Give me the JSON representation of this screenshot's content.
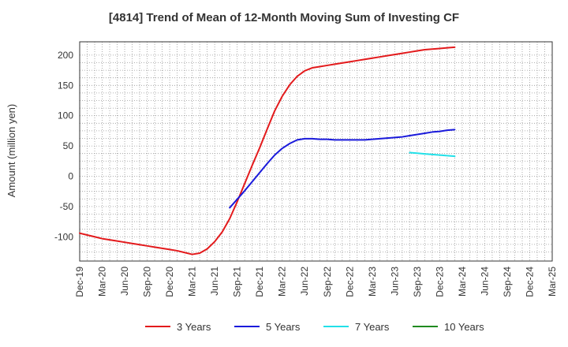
{
  "chart_data": {
    "type": "line",
    "title": "[4814]  Trend of Mean of 12-Month Moving Sum of Investing CF",
    "ylabel": "Amount (million yen)",
    "xlabel": "",
    "ylim": [
      -140,
      222
    ],
    "yticks": [
      -100,
      -50,
      0,
      50,
      100,
      150,
      200
    ],
    "x_tick_labels": [
      "Dec-19",
      "Mar-20",
      "Jun-20",
      "Sep-20",
      "Dec-20",
      "Mar-21",
      "Jun-21",
      "Sep-21",
      "Dec-21",
      "Mar-22",
      "Jun-22",
      "Sep-22",
      "Dec-22",
      "Mar-23",
      "Jun-23",
      "Sep-23",
      "Dec-23",
      "Mar-24",
      "Jun-24",
      "Sep-24",
      "Dec-24",
      "Mar-25"
    ],
    "grid": true,
    "legend_position": "bottom",
    "series": [
      {
        "name": "3 Years",
        "color": "#e31a1c",
        "points": [
          [
            "Dec-19",
            -94
          ],
          [
            "Jan-20",
            -97
          ],
          [
            "Feb-20",
            -100
          ],
          [
            "Mar-20",
            -103
          ],
          [
            "Apr-20",
            -105
          ],
          [
            "May-20",
            -107
          ],
          [
            "Jun-20",
            -109
          ],
          [
            "Jul-20",
            -111
          ],
          [
            "Aug-20",
            -113
          ],
          [
            "Sep-20",
            -115
          ],
          [
            "Oct-20",
            -117
          ],
          [
            "Nov-20",
            -119
          ],
          [
            "Dec-20",
            -121
          ],
          [
            "Jan-21",
            -123
          ],
          [
            "Feb-21",
            -126
          ],
          [
            "Mar-21",
            -129
          ],
          [
            "Apr-21",
            -127
          ],
          [
            "May-21",
            -120
          ],
          [
            "Jun-21",
            -108
          ],
          [
            "Jul-21",
            -92
          ],
          [
            "Aug-21",
            -70
          ],
          [
            "Sep-21",
            -42
          ],
          [
            "Oct-21",
            -12
          ],
          [
            "Nov-21",
            18
          ],
          [
            "Dec-21",
            47
          ],
          [
            "Jan-22",
            78
          ],
          [
            "Feb-22",
            108
          ],
          [
            "Mar-22",
            132
          ],
          [
            "Apr-22",
            151
          ],
          [
            "May-22",
            165
          ],
          [
            "Jun-22",
            174
          ],
          [
            "Jul-22",
            179
          ],
          [
            "Aug-22",
            181
          ],
          [
            "Sep-22",
            183
          ],
          [
            "Oct-22",
            185
          ],
          [
            "Nov-22",
            187
          ],
          [
            "Dec-22",
            189
          ],
          [
            "Jan-23",
            191
          ],
          [
            "Feb-23",
            193
          ],
          [
            "Mar-23",
            195
          ],
          [
            "Apr-23",
            197
          ],
          [
            "May-23",
            199
          ],
          [
            "Jun-23",
            201
          ],
          [
            "Jul-23",
            203
          ],
          [
            "Aug-23",
            205
          ],
          [
            "Sep-23",
            207
          ],
          [
            "Oct-23",
            209
          ],
          [
            "Nov-23",
            210
          ],
          [
            "Dec-23",
            211
          ],
          [
            "Jan-24",
            212
          ],
          [
            "Feb-24",
            213
          ]
        ]
      },
      {
        "name": "5 Years",
        "color": "#1a1adb",
        "points": [
          [
            "Aug-21",
            -52
          ],
          [
            "Sep-21",
            -38
          ],
          [
            "Oct-21",
            -24
          ],
          [
            "Nov-21",
            -9
          ],
          [
            "Dec-21",
            6
          ],
          [
            "Jan-22",
            21
          ],
          [
            "Feb-22",
            35
          ],
          [
            "Mar-22",
            46
          ],
          [
            "Apr-22",
            54
          ],
          [
            "May-22",
            60
          ],
          [
            "Jun-22",
            62
          ],
          [
            "Jul-22",
            62
          ],
          [
            "Aug-22",
            61
          ],
          [
            "Sep-22",
            61
          ],
          [
            "Oct-22",
            60
          ],
          [
            "Nov-22",
            60
          ],
          [
            "Dec-22",
            60
          ],
          [
            "Jan-23",
            60
          ],
          [
            "Feb-23",
            60
          ],
          [
            "Mar-23",
            61
          ],
          [
            "Apr-23",
            62
          ],
          [
            "May-23",
            63
          ],
          [
            "Jun-23",
            64
          ],
          [
            "Jul-23",
            65
          ],
          [
            "Aug-23",
            67
          ],
          [
            "Sep-23",
            69
          ],
          [
            "Oct-23",
            71
          ],
          [
            "Nov-23",
            73
          ],
          [
            "Dec-23",
            74
          ],
          [
            "Jan-24",
            76
          ],
          [
            "Feb-24",
            77
          ]
        ]
      },
      {
        "name": "7 Years",
        "color": "#22e0e8",
        "points": [
          [
            "Aug-23",
            39
          ],
          [
            "Sep-23",
            38
          ],
          [
            "Oct-23",
            37
          ],
          [
            "Nov-23",
            36
          ],
          [
            "Dec-23",
            35
          ],
          [
            "Jan-24",
            34
          ],
          [
            "Feb-24",
            33
          ]
        ]
      },
      {
        "name": "10 Years",
        "color": "#1f8a1f",
        "points": []
      }
    ]
  }
}
